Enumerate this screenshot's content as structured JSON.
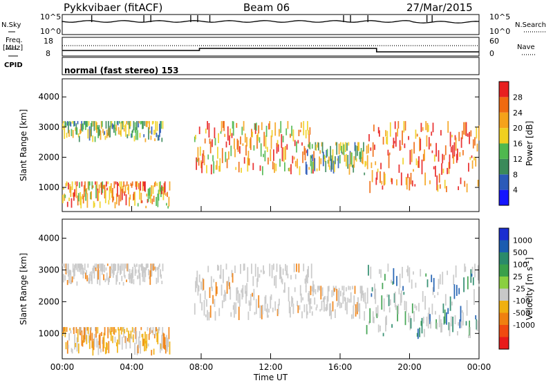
{
  "header": {
    "title": "Pykkvibaer (fitACF)",
    "beam": "Beam 06",
    "date": "27/Mar/2015"
  },
  "summary": {
    "nsky_label": "N.Sky",
    "nsky_ticks": [
      "10^5",
      "10^0"
    ],
    "nsearch_label": "N.Search",
    "nsearch_ticks": [
      "10^5",
      "10^0"
    ],
    "freq_label": "Freq.",
    "freq_unit": "[MHz]",
    "freq_ticks": [
      "18",
      "8"
    ],
    "nave_label": "Nave",
    "nave_ticks": [
      "60",
      "0"
    ],
    "cpid_label": "CPID",
    "cpid_text": "normal (fast stereo) 153"
  },
  "chart_data": [
    {
      "type": "heatmap",
      "panel": "power",
      "ylabel": "Slant Range [km]",
      "ylim": [
        200,
        4600
      ],
      "yticks": [
        1000,
        2000,
        3000,
        4000
      ],
      "xlim": [
        0,
        24
      ],
      "colorbar": {
        "label": "Power [dB]",
        "ticks": [
          "4",
          "8",
          "12",
          "16",
          "20",
          "24",
          "28"
        ],
        "colors": [
          "#1515ff",
          "#2b5ab8",
          "#3b8a5a",
          "#4fb84f",
          "#f0d020",
          "#f5a21a",
          "#f06a10",
          "#e82020"
        ]
      },
      "echo_regions": [
        {
          "t0": 0.0,
          "t1": 5.8,
          "r0": 2500,
          "r1": 3200,
          "level": "low"
        },
        {
          "t0": 0.0,
          "t1": 6.2,
          "r0": 300,
          "r1": 1200,
          "level": "medium"
        },
        {
          "t0": 7.6,
          "t1": 14.5,
          "r0": 1400,
          "r1": 3200,
          "level": "medium"
        },
        {
          "t0": 14.0,
          "t1": 17.5,
          "r0": 1400,
          "r1": 2500,
          "level": "low"
        },
        {
          "t0": 17.5,
          "t1": 24.0,
          "r0": 800,
          "r1": 3200,
          "level": "high"
        }
      ]
    },
    {
      "type": "heatmap",
      "panel": "velocity",
      "ylabel": "Slant Range [km]",
      "ylim": [
        200,
        4600
      ],
      "yticks": [
        1000,
        2000,
        3000,
        4000
      ],
      "xlim": [
        0,
        24
      ],
      "xlabel": "Time UT",
      "xticks": [
        "00:00",
        "04:00",
        "08:00",
        "12:00",
        "16:00",
        "20:00",
        "00:00"
      ],
      "colorbar": {
        "label": "Velocity",
        "unit": "[m s",
        "unit_sup": "-1",
        "unit_close": "]",
        "ticks": [
          "1000",
          "500",
          "100",
          "25",
          "-25",
          "-100",
          "-500",
          "-1000"
        ],
        "colors": [
          "#1a2ed0",
          "#1a5cb0",
          "#2a8a6a",
          "#3aa04a",
          "#8ad040",
          "#c8c8c8",
          "#f0b010",
          "#f08010",
          "#f04a10",
          "#e81a1a"
        ]
      }
    }
  ]
}
